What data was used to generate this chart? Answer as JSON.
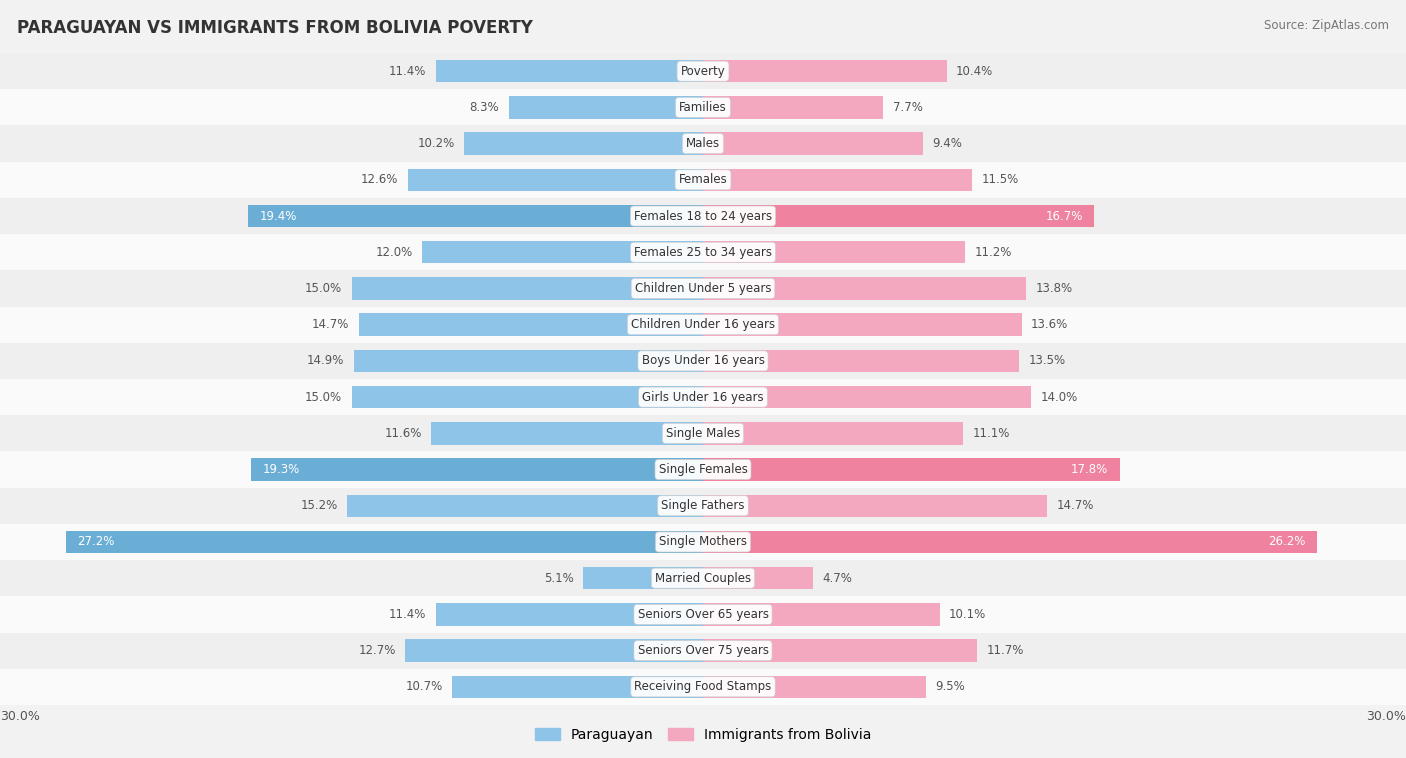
{
  "title": "PARAGUAYAN VS IMMIGRANTS FROM BOLIVIA POVERTY",
  "source": "Source: ZipAtlas.com",
  "categories": [
    "Poverty",
    "Families",
    "Males",
    "Females",
    "Females 18 to 24 years",
    "Females 25 to 34 years",
    "Children Under 5 years",
    "Children Under 16 years",
    "Boys Under 16 years",
    "Girls Under 16 years",
    "Single Males",
    "Single Females",
    "Single Fathers",
    "Single Mothers",
    "Married Couples",
    "Seniors Over 65 years",
    "Seniors Over 75 years",
    "Receiving Food Stamps"
  ],
  "paraguayan": [
    11.4,
    8.3,
    10.2,
    12.6,
    19.4,
    12.0,
    15.0,
    14.7,
    14.9,
    15.0,
    11.6,
    19.3,
    15.2,
    27.2,
    5.1,
    11.4,
    12.7,
    10.7
  ],
  "bolivia": [
    10.4,
    7.7,
    9.4,
    11.5,
    16.7,
    11.2,
    13.8,
    13.6,
    13.5,
    14.0,
    11.1,
    17.8,
    14.7,
    26.2,
    4.7,
    10.1,
    11.7,
    9.5
  ],
  "blue_color": "#8DC4E8",
  "pink_color": "#F4A8C0",
  "blue_highlight": "#6AAED6",
  "pink_highlight": "#EF829E",
  "bg_color": "#F2F2F2",
  "row_bg_even": "#EFEFEF",
  "row_bg_odd": "#FAFAFA",
  "axis_max": 30.0,
  "legend_paraguayan": "Paraguayan",
  "legend_bolivia": "Immigrants from Bolivia",
  "highlight_rows": [
    "Females 18 to 24 years",
    "Single Females",
    "Single Mothers"
  ]
}
